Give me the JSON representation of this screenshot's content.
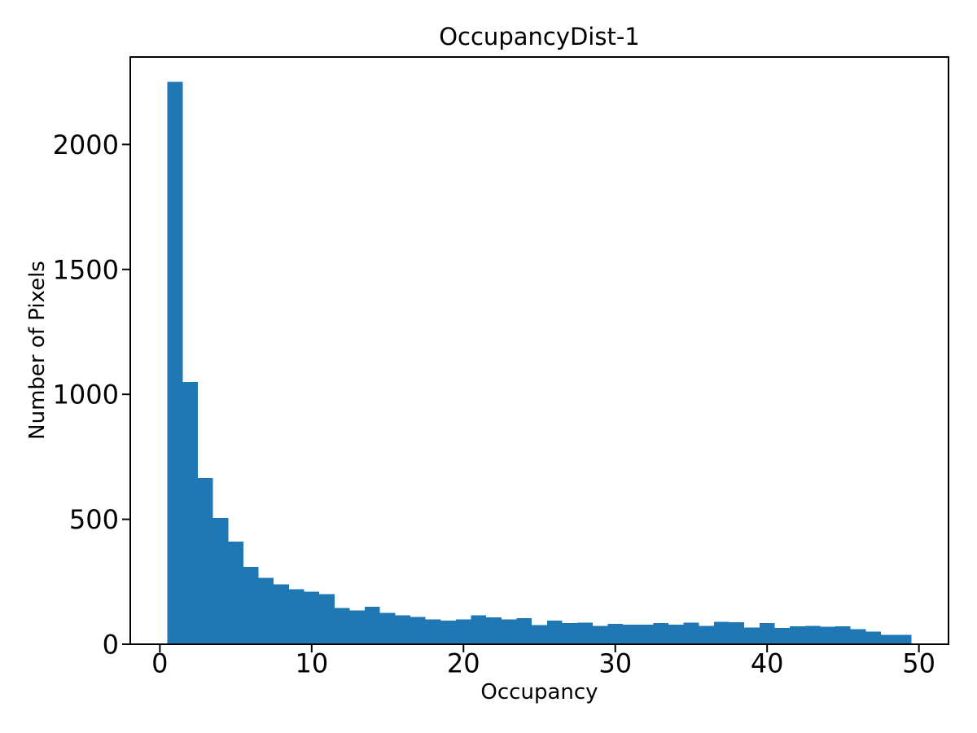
{
  "figure": {
    "background": "#ffffff",
    "text_color": "#000000"
  },
  "chart_data": {
    "type": "bar",
    "subtype": "histogram",
    "title": "OccupancyDist-1",
    "xlabel": "Occupancy",
    "ylabel": "Number of Pixels",
    "bar_color": "#1f77b4",
    "axis_color": "#000000",
    "grid": false,
    "legend": null,
    "bin_start": 0.5,
    "bin_width": 1,
    "counts": [
      2250,
      1050,
      665,
      505,
      410,
      310,
      265,
      240,
      220,
      210,
      200,
      145,
      135,
      150,
      125,
      115,
      110,
      100,
      95,
      100,
      115,
      108,
      100,
      105,
      76,
      95,
      84,
      87,
      74,
      82,
      78,
      78,
      84,
      78,
      87,
      74,
      90,
      88,
      67,
      84,
      65,
      71,
      74,
      70,
      71,
      60,
      50,
      38,
      38
    ],
    "x_ticks": [
      0,
      10,
      20,
      30,
      40,
      50
    ],
    "y_ticks": [
      0,
      500,
      1000,
      1500,
      2000
    ],
    "xlim": [
      -1.95,
      51.95
    ],
    "ylim": [
      0,
      2350
    ]
  }
}
